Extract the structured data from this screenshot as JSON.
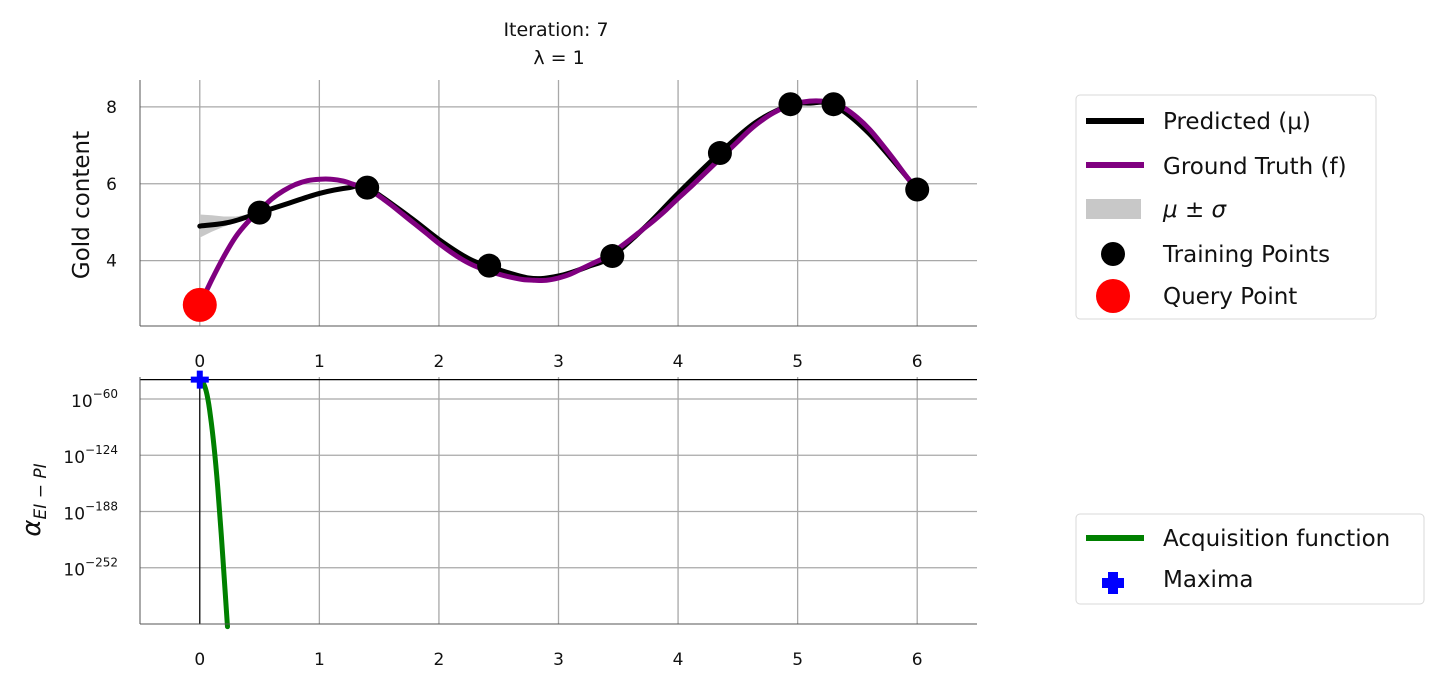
{
  "chart_data": [
    {
      "type": "line",
      "title": "Iteration: 7",
      "subtitle": "λ = 1",
      "xlabel": "",
      "ylabel": "Gold content",
      "xlim": [
        -0.5,
        6.5
      ],
      "ylim": [
        2.3,
        8.7
      ],
      "xticks": [
        0,
        1,
        2,
        3,
        4,
        5,
        6
      ],
      "yticks": [
        4,
        6,
        8
      ],
      "grid": true,
      "legend_placement": "right",
      "series": [
        {
          "name": "Predicted (μ)",
          "color": "#000000",
          "x": [
            0,
            0.25,
            0.5,
            0.75,
            1.0,
            1.25,
            1.4,
            1.75,
            2.0,
            2.25,
            2.42,
            2.75,
            3.0,
            3.25,
            3.45,
            3.75,
            4.0,
            4.35,
            4.65,
            4.94,
            5.1,
            5.3,
            5.6,
            6.0
          ],
          "y": [
            4.9,
            5.0,
            5.25,
            5.5,
            5.75,
            5.9,
            5.9,
            5.15,
            4.55,
            4.05,
            3.85,
            3.55,
            3.6,
            3.85,
            4.12,
            4.95,
            5.75,
            6.8,
            7.6,
            8.05,
            8.1,
            8.05,
            7.3,
            5.85
          ]
        },
        {
          "name": "Ground Truth (f)",
          "color": "#800080",
          "x": [
            0,
            0.1,
            0.2,
            0.3,
            0.4,
            0.5,
            0.6,
            0.7,
            0.8,
            0.9,
            1.0,
            1.1,
            1.2,
            1.3,
            1.4,
            1.5,
            1.6,
            1.7,
            1.8,
            1.9,
            2.0,
            2.1,
            2.2,
            2.3,
            2.4,
            2.5,
            2.6,
            2.7,
            2.8,
            2.9,
            3.0,
            3.1,
            3.2,
            3.3,
            3.4,
            3.5,
            3.6,
            3.7,
            3.8,
            3.9,
            4.0,
            4.1,
            4.2,
            4.3,
            4.4,
            4.5,
            4.6,
            4.7,
            4.8,
            4.9,
            5.0,
            5.1,
            5.2,
            5.3,
            5.4,
            5.5,
            5.6,
            5.7,
            5.8,
            5.9,
            6.0
          ],
          "y": [
            2.85,
            3.5,
            4.1,
            4.62,
            5.0,
            5.3,
            5.6,
            5.82,
            5.98,
            6.08,
            6.12,
            6.12,
            6.07,
            5.97,
            5.87,
            5.68,
            5.45,
            5.2,
            4.95,
            4.7,
            4.45,
            4.22,
            4.02,
            3.86,
            3.75,
            3.65,
            3.57,
            3.51,
            3.49,
            3.49,
            3.55,
            3.65,
            3.8,
            3.95,
            4.1,
            4.32,
            4.55,
            4.8,
            5.05,
            5.32,
            5.62,
            5.9,
            6.2,
            6.5,
            6.8,
            7.1,
            7.4,
            7.65,
            7.85,
            8.0,
            8.1,
            8.15,
            8.15,
            8.08,
            7.95,
            7.72,
            7.42,
            7.05,
            6.65,
            6.23,
            5.85
          ]
        },
        {
          "name": "μ ± σ",
          "color": "#c8c8c8",
          "x": [
            0,
            0.1,
            0.2,
            0.3,
            0.4,
            0.5
          ],
          "upper": [
            5.2,
            5.18,
            5.15,
            5.15,
            5.2,
            5.25
          ],
          "lower": [
            4.6,
            4.75,
            4.88,
            5.0,
            5.12,
            5.25
          ]
        }
      ],
      "training_points": {
        "name": "Training Points",
        "color": "#000000",
        "x": [
          0.5,
          1.4,
          2.42,
          3.45,
          4.35,
          4.94,
          5.3,
          6.0
        ],
        "y": [
          5.25,
          5.9,
          3.87,
          4.12,
          6.8,
          8.07,
          8.07,
          5.85
        ]
      },
      "query_point": {
        "name": "Query Point",
        "color": "#ff0000",
        "x": 0,
        "y": 2.85
      }
    },
    {
      "type": "line",
      "title": "",
      "xlabel": "",
      "ylabel": "α",
      "ylabel_subscript": "EI − PI",
      "yscale": "log",
      "xlim": [
        -0.5,
        6.5
      ],
      "xticks": [
        0,
        1,
        2,
        3,
        4,
        5,
        6
      ],
      "ytick_exponents": [
        -60,
        -124,
        -188,
        -252
      ],
      "ytick_base": "10",
      "ylim_exponents": [
        -316,
        -35
      ],
      "grid": true,
      "legend_placement": "right",
      "series": [
        {
          "name": "Acquisition function",
          "color": "#008000",
          "x": [
            0.0,
            0.03,
            0.06,
            0.09,
            0.12,
            0.15,
            0.18,
            0.21,
            0.23,
            0.23
          ],
          "log10_y": [
            -38,
            -42,
            -55,
            -80,
            -115,
            -160,
            -215,
            -275,
            -316,
            -316
          ]
        }
      ],
      "maxima": {
        "name": "Maxima",
        "color": "#0000ff",
        "x": 0,
        "log10_y": -38
      },
      "hline_log10_y": -38,
      "vline_x": 0
    }
  ]
}
